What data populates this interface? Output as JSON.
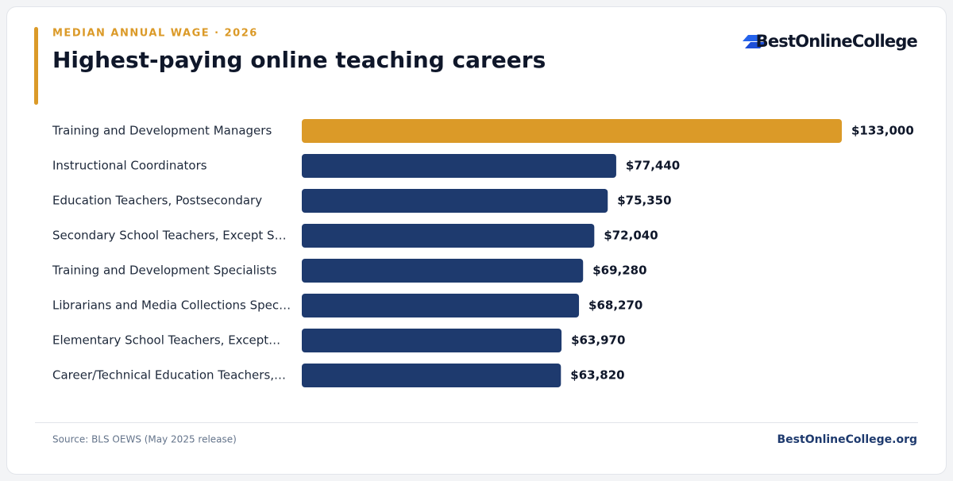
{
  "chart_data": {
    "type": "bar",
    "orientation": "horizontal",
    "eyebrow": "MEDIAN ANNUAL WAGE · 2026",
    "title": "Highest-paying online teaching careers",
    "brand": "BestOnlineCollege",
    "categories": [
      "Training and Development Managers",
      "Instructional Coordinators",
      "Education Teachers, Postsecondary",
      "Secondary School Teachers, Except S…",
      "Training and Development Specialists",
      "Librarians and Media Collections Spec…",
      "Elementary School Teachers, Except…",
      "Career/Technical Education Teachers,…"
    ],
    "values": [
      133000,
      77440,
      75350,
      72040,
      69280,
      68270,
      63970,
      63820
    ],
    "value_labels": [
      "$133,000",
      "$77,440",
      "$75,350",
      "$72,040",
      "$69,280",
      "$68,270",
      "$63,970",
      "$63,820"
    ],
    "colors": [
      "#db9a28",
      "#1e3a6e",
      "#1e3a6e",
      "#1e3a6e",
      "#1e3a6e",
      "#1e3a6e",
      "#1e3a6e",
      "#1e3a6e"
    ],
    "source": "Source: BLS OEWS (May 2025 release)",
    "footer_brand": "BestOnlineCollege.org"
  }
}
